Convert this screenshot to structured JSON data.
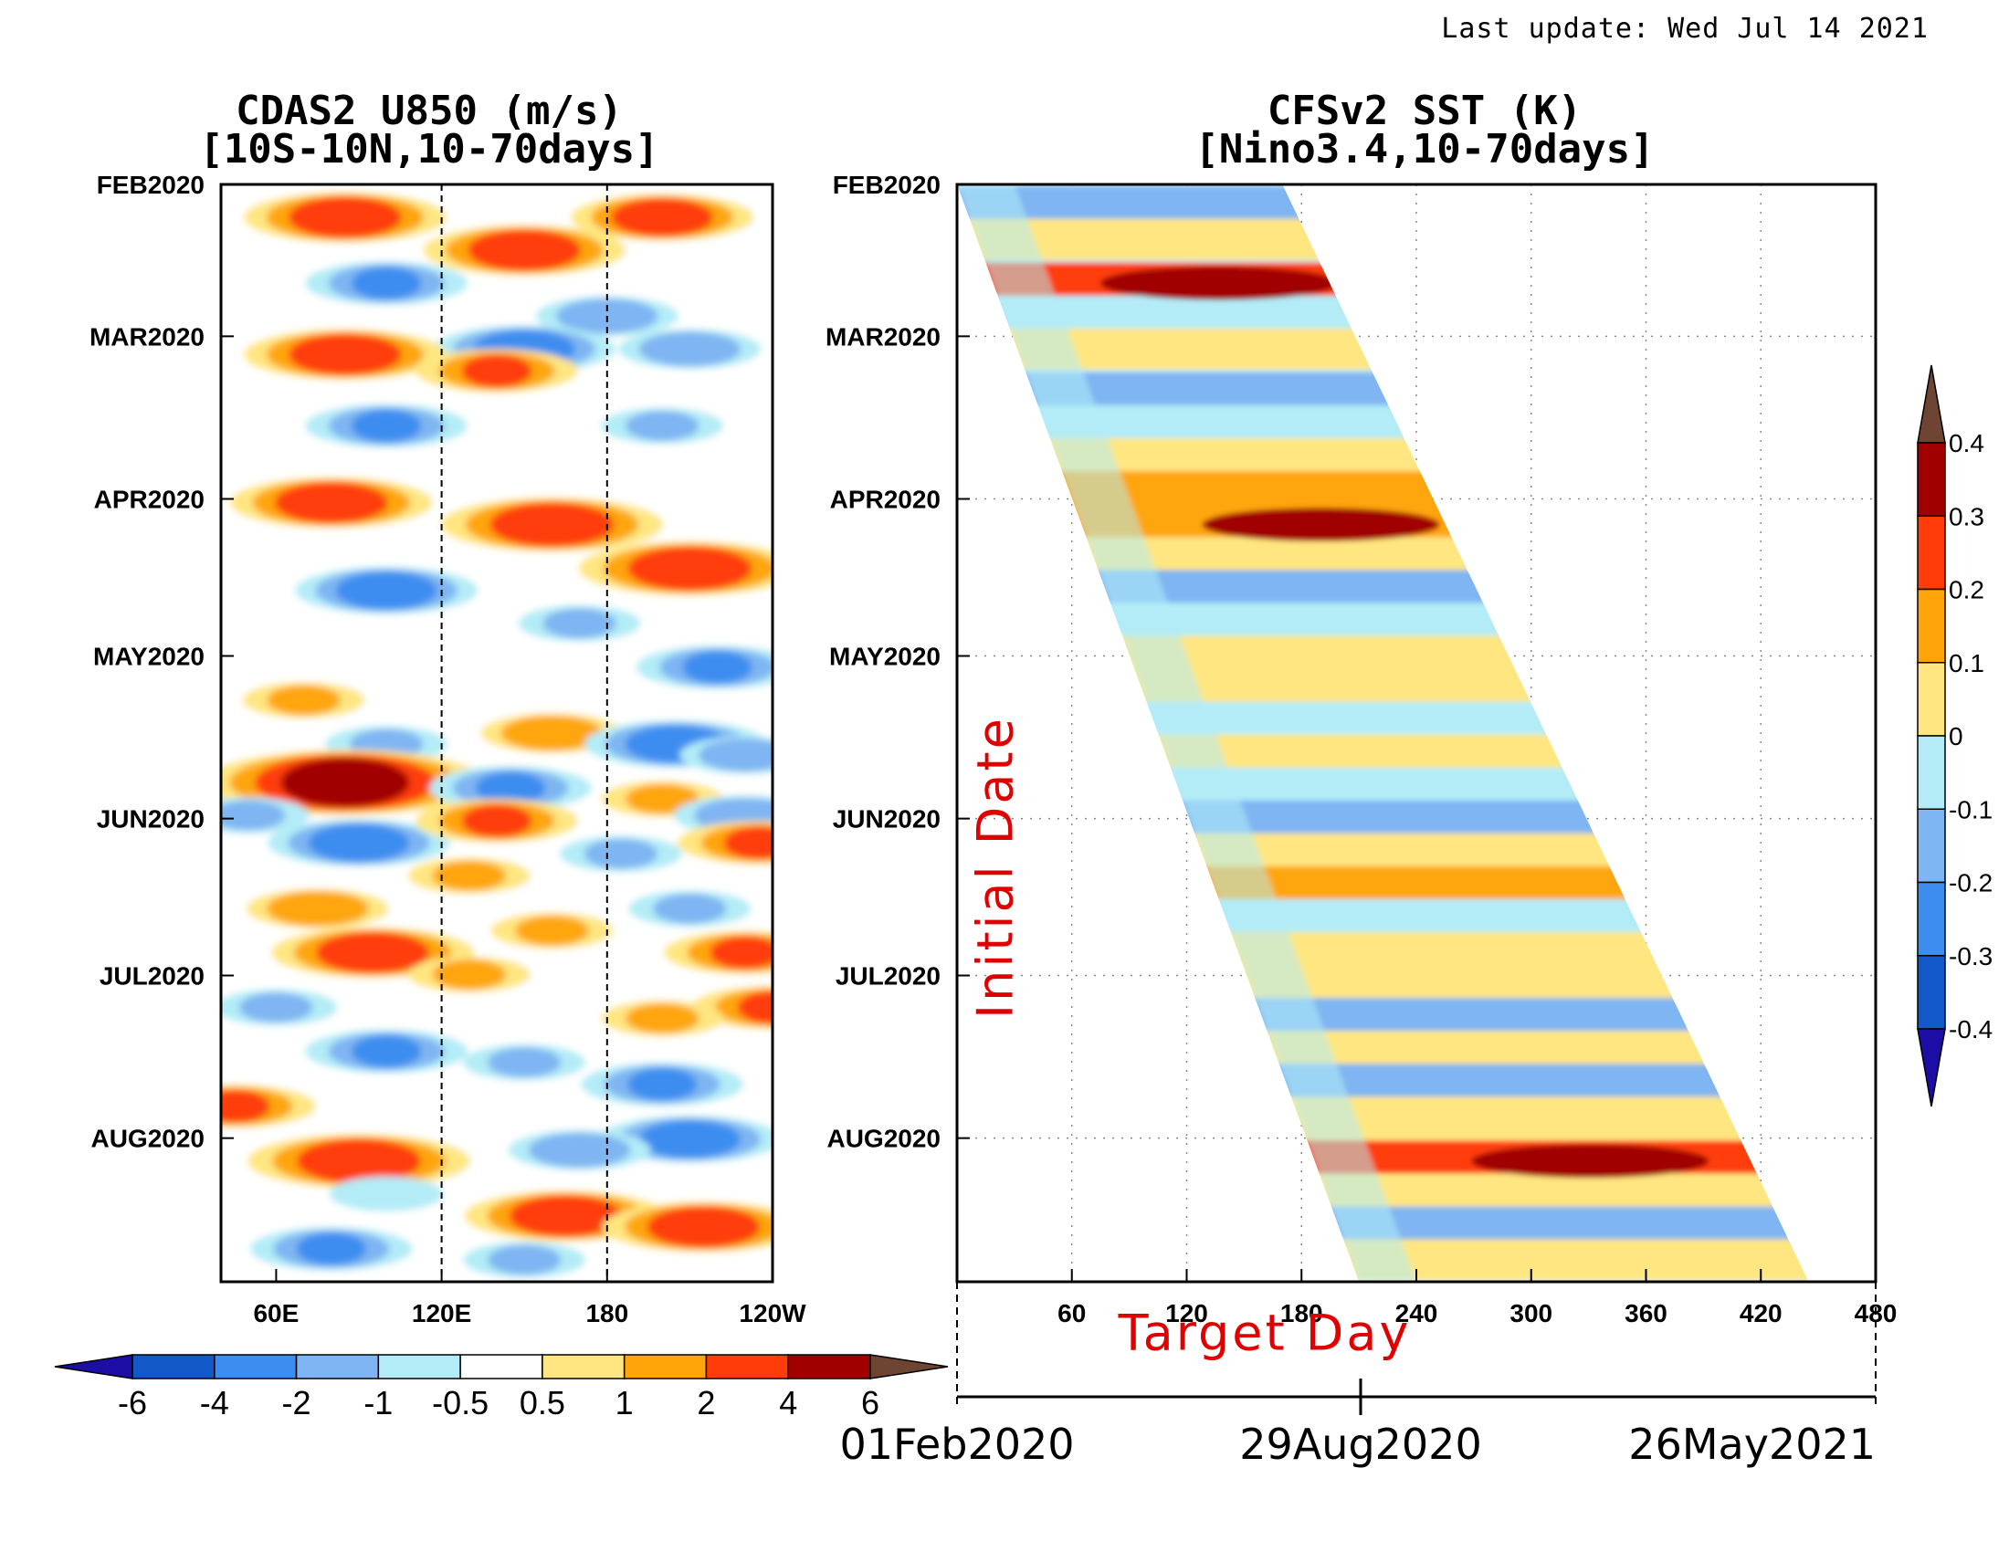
{
  "header": {
    "last_update": "Last update: Wed Jul 14 2021"
  },
  "chart_data": [
    {
      "type": "heatmap",
      "title": "CDAS2 U850 (m/s)",
      "subtitle": "[10S-10N,10-70days]",
      "x_ticks": [
        "60E",
        "120E",
        "180",
        "120W"
      ],
      "y_ticks": [
        "FEB2020",
        "MAR2020",
        "APR2020",
        "MAY2020",
        "JUN2020",
        "JUL2020",
        "AUG2020"
      ],
      "reference_lines": [
        "120E",
        "180"
      ],
      "colorbar": {
        "orientation": "horizontal",
        "levels": [
          "-6",
          "-4",
          "-2",
          "-1",
          "-0.5",
          "0.5",
          "1",
          "2",
          "4",
          "6"
        ],
        "colors": [
          "#1c0ea4",
          "#1358c8",
          "#3d8df0",
          "#7fb5f2",
          "#b3ecf7",
          "#ffffff",
          "#ffe680",
          "#ffa50a",
          "#ff3c0a",
          "#a00000",
          "#6e4532"
        ]
      },
      "bands": [
        {
          "t": 0.03,
          "lon": 85,
          "v": 3.0
        },
        {
          "t": 0.03,
          "lon": 200,
          "v": 2.5
        },
        {
          "t": 0.06,
          "lon": 150,
          "v": 3.0
        },
        {
          "t": 0.09,
          "lon": 100,
          "v": -2.0
        },
        {
          "t": 0.12,
          "lon": 180,
          "v": -1.5
        },
        {
          "t": 0.15,
          "lon": 150,
          "v": -2.5
        },
        {
          "t": 0.15,
          "lon": 210,
          "v": -1.5
        },
        {
          "t": 0.155,
          "lon": 85,
          "v": 3.0
        },
        {
          "t": 0.17,
          "lon": 140,
          "v": 2.0
        },
        {
          "t": 0.22,
          "lon": 100,
          "v": -2.0
        },
        {
          "t": 0.22,
          "lon": 200,
          "v": -1.0
        },
        {
          "t": 0.29,
          "lon": 80,
          "v": 3.0
        },
        {
          "t": 0.31,
          "lon": 160,
          "v": 3.5
        },
        {
          "t": 0.35,
          "lon": 210,
          "v": 3.5
        },
        {
          "t": 0.37,
          "lon": 100,
          "v": -2.5
        },
        {
          "t": 0.4,
          "lon": 170,
          "v": -1.0
        },
        {
          "t": 0.44,
          "lon": 220,
          "v": -2.0
        },
        {
          "t": 0.47,
          "lon": 70,
          "v": 1.0
        },
        {
          "t": 0.5,
          "lon": 160,
          "v": 1.5
        },
        {
          "t": 0.51,
          "lon": 205,
          "v": -2.5
        },
        {
          "t": 0.51,
          "lon": 100,
          "v": -1.0
        },
        {
          "t": 0.52,
          "lon": 230,
          "v": -1.2
        },
        {
          "t": 0.545,
          "lon": 85,
          "v": 5.0
        },
        {
          "t": 0.55,
          "lon": 145,
          "v": -2.0
        },
        {
          "t": 0.56,
          "lon": 200,
          "v": 1.0
        },
        {
          "t": 0.575,
          "lon": 230,
          "v": -1.5
        },
        {
          "t": 0.575,
          "lon": 50,
          "v": -1.0
        },
        {
          "t": 0.6,
          "lon": 90,
          "v": -2.5
        },
        {
          "t": 0.58,
          "lon": 140,
          "v": 2.0
        },
        {
          "t": 0.61,
          "lon": 185,
          "v": -1.0
        },
        {
          "t": 0.6,
          "lon": 235,
          "v": 2.0
        },
        {
          "t": 0.63,
          "lon": 130,
          "v": 1.0
        },
        {
          "t": 0.66,
          "lon": 75,
          "v": 1.5
        },
        {
          "t": 0.66,
          "lon": 210,
          "v": -1.0
        },
        {
          "t": 0.68,
          "lon": 160,
          "v": 1.0
        },
        {
          "t": 0.7,
          "lon": 230,
          "v": 2.0
        },
        {
          "t": 0.7,
          "lon": 95,
          "v": 3.0
        },
        {
          "t": 0.72,
          "lon": 130,
          "v": 1.0
        },
        {
          "t": 0.75,
          "lon": 60,
          "v": -1.0
        },
        {
          "t": 0.75,
          "lon": 240,
          "v": 2.0
        },
        {
          "t": 0.76,
          "lon": 200,
          "v": 1.0
        },
        {
          "t": 0.79,
          "lon": 100,
          "v": -2.0
        },
        {
          "t": 0.8,
          "lon": 150,
          "v": -1.0
        },
        {
          "t": 0.82,
          "lon": 200,
          "v": -2.0
        },
        {
          "t": 0.84,
          "lon": 45,
          "v": 2.0
        },
        {
          "t": 0.87,
          "lon": 210,
          "v": -2.5
        },
        {
          "t": 0.88,
          "lon": 170,
          "v": -1.5
        },
        {
          "t": 0.89,
          "lon": 90,
          "v": 3.5
        },
        {
          "t": 0.92,
          "lon": 100,
          "v": -0.8
        },
        {
          "t": 0.94,
          "lon": 165,
          "v": 3.0
        },
        {
          "t": 0.95,
          "lon": 215,
          "v": 3.0
        },
        {
          "t": 0.97,
          "lon": 80,
          "v": -2.0
        },
        {
          "t": 0.98,
          "lon": 150,
          "v": -1.0
        }
      ]
    },
    {
      "type": "heatmap",
      "title": "CFSv2 SST (K)",
      "subtitle": "[Nino3.4,10-70days]",
      "x_ticks": [
        "60",
        "120",
        "180",
        "240",
        "300",
        "360",
        "420",
        "480"
      ],
      "xlim": [
        0,
        480
      ],
      "y_ticks": [
        "FEB2020",
        "MAR2020",
        "APR2020",
        "MAY2020",
        "JUN2020",
        "JUL2020",
        "AUG2020"
      ],
      "xlabel": "Target Day",
      "ylabel": "Initial Date",
      "date_axis": [
        "01Feb2020",
        "29Aug2020",
        "26May2021"
      ],
      "colorbar": {
        "orientation": "vertical",
        "levels": [
          "-0.4",
          "-0.3",
          "-0.2",
          "-0.1",
          "0",
          "0.1",
          "0.2",
          "0.3",
          "0.4"
        ],
        "colors": [
          "#1c0ea4",
          "#1358c8",
          "#3d8df0",
          "#7fb5f2",
          "#b3ecf7",
          "#ffe680",
          "#ffa50a",
          "#ff3c0a",
          "#a00000",
          "#6e4532"
        ]
      },
      "bands": [
        {
          "t": 0.02,
          "v": -0.15
        },
        {
          "t": 0.05,
          "v": 0.05
        },
        {
          "t": 0.09,
          "v": 0.25
        },
        {
          "t": 0.12,
          "v": -0.05
        },
        {
          "t": 0.15,
          "v": 0.05
        },
        {
          "t": 0.19,
          "v": -0.15
        },
        {
          "t": 0.22,
          "v": -0.05
        },
        {
          "t": 0.25,
          "v": 0.05
        },
        {
          "t": 0.28,
          "v": 0.15
        },
        {
          "t": 0.31,
          "v": 0.2
        },
        {
          "t": 0.34,
          "v": 0.05
        },
        {
          "t": 0.37,
          "v": -0.15
        },
        {
          "t": 0.4,
          "v": -0.05
        },
        {
          "t": 0.43,
          "v": 0.05
        },
        {
          "t": 0.46,
          "v": 0.1
        },
        {
          "t": 0.49,
          "v": -0.05
        },
        {
          "t": 0.52,
          "v": 0.05
        },
        {
          "t": 0.55,
          "v": -0.05
        },
        {
          "t": 0.58,
          "v": -0.15
        },
        {
          "t": 0.61,
          "v": 0.05
        },
        {
          "t": 0.64,
          "v": 0.15
        },
        {
          "t": 0.67,
          "v": -0.05
        },
        {
          "t": 0.7,
          "v": 0.05
        },
        {
          "t": 0.73,
          "v": 0.1
        },
        {
          "t": 0.76,
          "v": -0.15
        },
        {
          "t": 0.79,
          "v": 0.05
        },
        {
          "t": 0.82,
          "v": -0.15
        },
        {
          "t": 0.85,
          "v": 0.05
        },
        {
          "t": 0.87,
          "v": 0.1
        },
        {
          "t": 0.89,
          "v": 0.22
        },
        {
          "t": 0.92,
          "v": 0.05
        },
        {
          "t": 0.95,
          "v": -0.15
        },
        {
          "t": 0.98,
          "v": 0.05
        }
      ]
    }
  ]
}
